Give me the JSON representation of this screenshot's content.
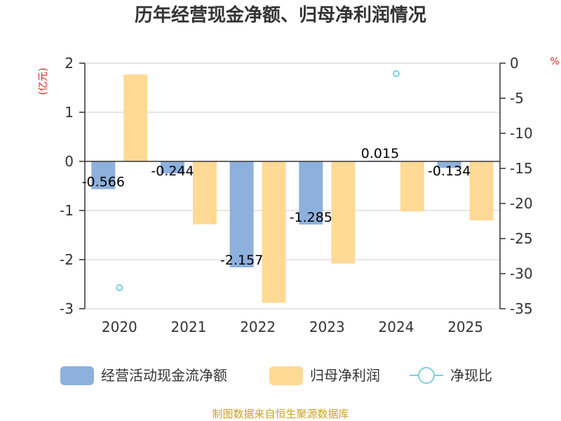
{
  "chart_data": {
    "type": "bar",
    "title": "历年经营现金净额、归母净利润情况",
    "categories": [
      "2020",
      "2021",
      "2022",
      "2023",
      "2024",
      "2025"
    ],
    "series": [
      {
        "name": "经营活动现金流净额",
        "axis": "left",
        "kind": "bar",
        "color": "#8eb0dc",
        "values": [
          -0.566,
          -0.244,
          -2.157,
          -1.285,
          0.015,
          -0.134
        ],
        "labels": [
          "-0.566",
          "-0.244",
          "-2.157",
          "-1.285",
          "0.015",
          "-0.134"
        ]
      },
      {
        "name": "归母净利润",
        "axis": "left",
        "kind": "bar",
        "color": "#ffd995",
        "values": [
          1.77,
          -1.28,
          -2.88,
          -2.08,
          -1.02,
          -1.2
        ]
      },
      {
        "name": "净现比",
        "axis": "right",
        "kind": "scatter",
        "color": "#7ecfe0",
        "values": [
          -32,
          null,
          null,
          null,
          -1.5,
          null
        ]
      }
    ],
    "y_left": {
      "label": "(亿元)",
      "range": [
        -3,
        2
      ],
      "ticks": [
        "2",
        "1",
        "0",
        "-1",
        "-2",
        "-3"
      ],
      "tick_values": [
        2,
        1,
        0,
        -1,
        -2,
        -3
      ]
    },
    "y_right": {
      "label": "%",
      "range": [
        -35,
        0
      ],
      "ticks": [
        "0",
        "-5",
        "-10",
        "-15",
        "-20",
        "-25",
        "-30",
        "-35"
      ],
      "tick_values": [
        0,
        -5,
        -10,
        -15,
        -20,
        -25,
        -30,
        -35
      ]
    },
    "unit_color": "#d9251d",
    "grid": true,
    "legend_position": "bottom",
    "source": "制图数据来自恒生聚源数据库",
    "source_color": "#c9a227"
  }
}
